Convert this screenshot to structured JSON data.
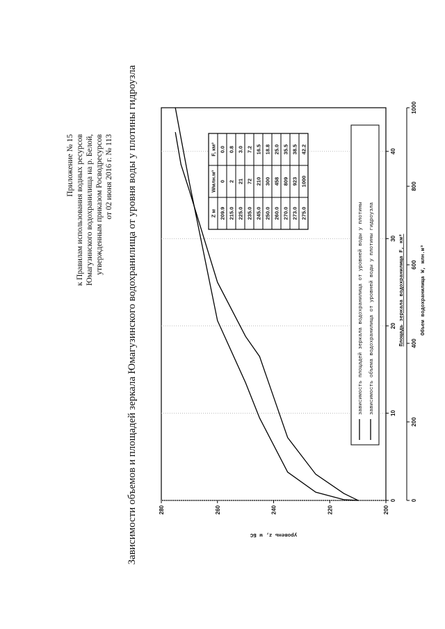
{
  "header": {
    "lines": [
      "Приложение № 15",
      "к Правилам использования водных ресурсов",
      "Юмагузинского водохранилища на р. Белой,",
      "утвержденным приказом Росводресурсов",
      "от 02 июня 2016 г. № 113"
    ]
  },
  "chart_data": {
    "type": "line",
    "title": "Зависимости объемов и площадей зеркала Юмагузинского водохранилища от уровня воды у плотины гидроузла",
    "ylabel": "уровень z, м БС",
    "xlabel": "Площадь зеркала водохранилища F, км²",
    "x2label": "Объем водохранилища W, млн.м³",
    "ylim": [
      200,
      280
    ],
    "yticks": [
      200,
      220,
      240,
      260,
      280
    ],
    "xlim": [
      0,
      45
    ],
    "xticks": [
      0,
      10,
      20,
      30,
      40
    ],
    "x2lim": [
      0,
      1000
    ],
    "x2ticks": [
      0,
      200,
      400,
      600,
      800,
      1000
    ],
    "grid": true,
    "series": [
      {
        "name": "зависимость площадей зеркала водохранилища от уровней воды у плотины",
        "color": "#000000",
        "x": [
          0.0,
          0.8,
          3.0,
          7.2,
          16.5,
          18.8,
          25.0,
          35.5,
          38.5,
          42.2
        ],
        "values": [
          209.9,
          215.0,
          225.0,
          235.0,
          245.0,
          250.0,
          260.0,
          270.0,
          273.0,
          275.0
        ]
      },
      {
        "name": "зависимость объема водохранилища от уровней воды у плотины гидроузла",
        "color": "#000000",
        "axis": "x2",
        "x": [
          0,
          2,
          21,
          72,
          210,
          300,
          458,
          809,
          923,
          1000
        ],
        "values": [
          209.9,
          215.0,
          225.0,
          235.0,
          245.0,
          250.0,
          260.0,
          270.0,
          273.0,
          275.0
        ]
      }
    ],
    "table": {
      "columns": [
        "Z м",
        "Wмлн.м³",
        "F, км²"
      ],
      "rows": [
        [
          "209.9",
          "0",
          "0.0"
        ],
        [
          "215.0",
          "2",
          "0.8"
        ],
        [
          "225.0",
          "21",
          "3.0"
        ],
        [
          "235.0",
          "72",
          "7.2"
        ],
        [
          "245.0",
          "210",
          "16.5"
        ],
        [
          "250.0",
          "300",
          "18.8"
        ],
        [
          "260.0",
          "458",
          "25.0"
        ],
        [
          "270.0",
          "809",
          "35.5"
        ],
        [
          "273.0",
          "923",
          "38.5"
        ],
        [
          "275.0",
          "1000",
          "42.2"
        ]
      ]
    }
  }
}
